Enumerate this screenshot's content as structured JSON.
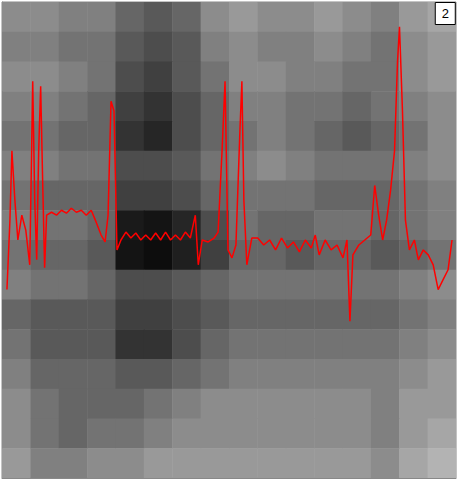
{
  "chart_data": {
    "type": "heatmap",
    "annotation": "2",
    "tick_labels": false,
    "grid": false,
    "xlim": [
      0,
      458
    ],
    "ylim": [
      0,
      480
    ],
    "yticks": [
      10,
      27.5,
      45,
      62.5,
      80,
      97.5,
      115,
      132.5,
      150,
      167.5,
      185,
      202.5,
      220,
      237.5,
      255,
      272.5,
      290,
      307.5,
      325,
      342.5,
      360,
      377.5,
      395
    ],
    "zlim": [
      0,
      100
    ],
    "cells": [
      [
        55,
        55,
        50,
        50,
        40,
        35,
        40,
        55,
        60,
        55,
        55,
        60,
        55,
        50,
        60,
        65
      ],
      [
        50,
        50,
        45,
        45,
        35,
        30,
        35,
        50,
        55,
        50,
        50,
        55,
        50,
        45,
        55,
        60
      ],
      [
        55,
        55,
        50,
        45,
        30,
        25,
        35,
        45,
        55,
        55,
        50,
        50,
        45,
        45,
        55,
        60
      ],
      [
        50,
        50,
        45,
        40,
        25,
        20,
        30,
        40,
        50,
        50,
        45,
        45,
        40,
        45,
        50,
        55
      ],
      [
        45,
        45,
        40,
        40,
        20,
        15,
        30,
        40,
        45,
        50,
        45,
        40,
        35,
        40,
        45,
        55
      ],
      [
        50,
        50,
        45,
        45,
        30,
        30,
        35,
        45,
        50,
        55,
        50,
        45,
        45,
        45,
        50,
        55
      ],
      [
        45,
        40,
        40,
        40,
        25,
        25,
        30,
        40,
        45,
        45,
        45,
        40,
        40,
        40,
        45,
        50
      ],
      [
        50,
        45,
        45,
        40,
        10,
        8,
        15,
        30,
        45,
        40,
        40,
        45,
        45,
        40,
        45,
        50
      ],
      [
        45,
        40,
        40,
        35,
        8,
        5,
        12,
        25,
        40,
        40,
        35,
        40,
        40,
        35,
        40,
        45
      ],
      [
        50,
        45,
        45,
        40,
        30,
        30,
        35,
        40,
        45,
        45,
        45,
        45,
        45,
        45,
        50,
        55
      ],
      [
        40,
        35,
        35,
        35,
        25,
        25,
        30,
        35,
        40,
        40,
        40,
        40,
        40,
        40,
        45,
        50
      ],
      [
        45,
        35,
        35,
        35,
        20,
        20,
        30,
        40,
        45,
        45,
        45,
        45,
        45,
        45,
        50,
        55
      ],
      [
        50,
        40,
        40,
        40,
        35,
        35,
        40,
        45,
        50,
        50,
        50,
        50,
        50,
        50,
        55,
        60
      ],
      [
        55,
        45,
        40,
        40,
        40,
        45,
        50,
        55,
        55,
        55,
        55,
        55,
        55,
        50,
        60,
        60
      ],
      [
        55,
        45,
        40,
        45,
        45,
        50,
        55,
        55,
        55,
        55,
        55,
        55,
        55,
        50,
        60,
        65
      ],
      [
        60,
        50,
        50,
        55,
        55,
        60,
        60,
        60,
        60,
        60,
        60,
        60,
        60,
        55,
        65,
        70
      ]
    ],
    "x": [
      5,
      8,
      10,
      13,
      16,
      20,
      24,
      28,
      31,
      33,
      35,
      37,
      39,
      41,
      43,
      45,
      50,
      55,
      60,
      65,
      70,
      75,
      80,
      85,
      90,
      95,
      100,
      104,
      107,
      110,
      113,
      116,
      120,
      125,
      130,
      135,
      140,
      145,
      150,
      155,
      160,
      165,
      170,
      175,
      180,
      185,
      190,
      195,
      198,
      202,
      208,
      214,
      218,
      222,
      225,
      228,
      232,
      236,
      240,
      242,
      244,
      247,
      252,
      258,
      264,
      270,
      276,
      282,
      288,
      294,
      300,
      306,
      312,
      316,
      320,
      326,
      332,
      338,
      344,
      348,
      351,
      354,
      360,
      366,
      372,
      376,
      380,
      384,
      388,
      392,
      396,
      399,
      401,
      404,
      407,
      411,
      416,
      420,
      425,
      430,
      435,
      440,
      445,
      450,
      454
    ],
    "series": [
      {
        "type": "line",
        "color": "#ff0000",
        "line_style": "solid",
        "values": [
          190,
          260,
          330,
          280,
          240,
          265,
          250,
          215,
          400,
          280,
          220,
          330,
          395,
          300,
          212,
          265,
          268,
          265,
          270,
          267,
          272,
          268,
          270,
          265,
          270,
          258,
          245,
          238,
          265,
          380,
          370,
          230,
          240,
          248,
          242,
          247,
          240,
          245,
          240,
          247,
          240,
          248,
          240,
          245,
          240,
          248,
          242,
          265,
          215,
          240,
          238,
          242,
          248,
          330,
          400,
          230,
          222,
          235,
          350,
          400,
          280,
          215,
          242,
          242,
          235,
          240,
          230,
          242,
          232,
          238,
          228,
          240,
          232,
          245,
          225,
          240,
          230,
          235,
          222,
          240,
          158,
          225,
          235,
          240,
          245,
          295,
          265,
          240,
          260,
          290,
          330,
          420,
          455,
          370,
          260,
          230,
          240,
          220,
          230,
          225,
          215,
          190,
          200,
          210,
          240
        ]
      }
    ]
  }
}
